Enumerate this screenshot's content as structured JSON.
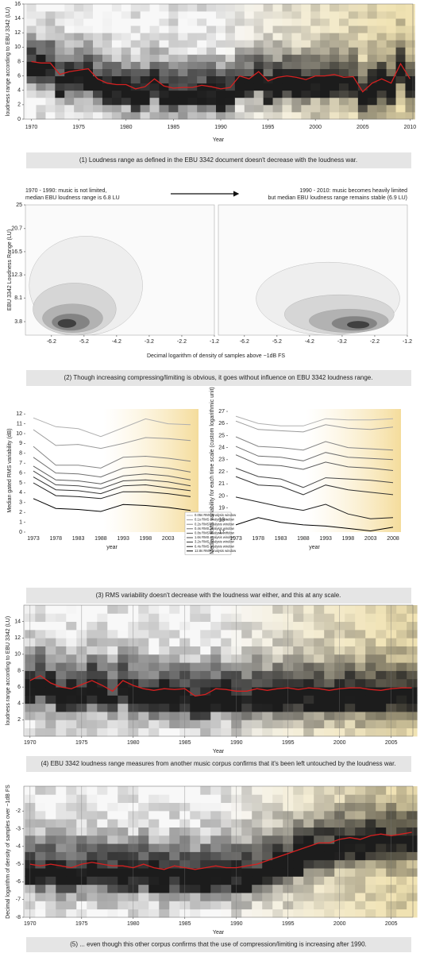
{
  "chart_data": [
    {
      "type": "heatmap",
      "ylabel": "loudness range according to EBU 3342 (LU)",
      "xlabel": "Year",
      "caption": "(1) Loudness range as defined in the EBU 3342 document doesn't decrease with the loudness war.",
      "x": [
        1970,
        1971,
        1972,
        1973,
        1974,
        1975,
        1976,
        1977,
        1978,
        1979,
        1980,
        1981,
        1982,
        1983,
        1984,
        1985,
        1986,
        1987,
        1988,
        1989,
        1990,
        1991,
        1992,
        1993,
        1994,
        1995,
        1996,
        1997,
        1998,
        1999,
        2000,
        2001,
        2002,
        2003,
        2004,
        2005,
        2006,
        2007,
        2008,
        2009,
        2010
      ],
      "values": [
        8,
        7.8,
        7.8,
        6.2,
        6.6,
        6.8,
        7,
        5.6,
        5,
        4.8,
        4.8,
        4.2,
        4.5,
        5.6,
        4.6,
        4.3,
        4.4,
        4.4,
        4.7,
        4.5,
        4.2,
        4.4,
        6,
        5.6,
        6.6,
        5.3,
        5.8,
        6,
        5.8,
        5.5,
        6,
        6,
        6.2,
        5.8,
        5.9,
        3.8,
        5,
        5.6,
        5,
        7.7,
        5.6
      ],
      "color": "#d62020",
      "xlim": [
        1969.2,
        2010.3
      ],
      "xticks": [
        1970,
        1975,
        1980,
        1985,
        1990,
        1995,
        2000,
        2005,
        2010
      ],
      "ylim": [
        0,
        16
      ],
      "yticks": [
        0,
        2,
        4,
        6,
        8,
        10,
        12,
        14,
        16
      ],
      "grid": false
    },
    {
      "type": "contour",
      "ylabel": "EBU 3342 Loudness Range (LU)",
      "xlabel": "Decimal logarithm of density of samples above −1dB FS",
      "annotation": [
        "1970 - 1990: music is not limited,",
        "median EBU loudness range is 6.8 LU"
      ],
      "xlim": [
        -7,
        -1.2
      ],
      "xticks": [
        -6.2,
        -5.2,
        -4.2,
        -3.2,
        -2.2,
        -1.2
      ],
      "ylim": [
        1.35,
        25
      ],
      "yticks": [
        3.8,
        8.1,
        12.3,
        16.5,
        20.7,
        25
      ]
    },
    {
      "type": "contour",
      "annotation": [
        "1990 - 2010: music becomes heavily limited",
        "but median EBU loudness range remains stable (6.9 LU)"
      ],
      "caption": "(2) Though increasing compressing/limiting is obvious, it goes without influence on EBU 3342 loudness range.",
      "xlim": [
        -7,
        -1.2
      ],
      "xticks": [
        -6.2,
        -5.2,
        -4.2,
        -3.2,
        -2.2,
        -1.2
      ]
    },
    {
      "type": "line",
      "ylabel": "Median gated RMS variability (dB)",
      "xlabel": "year",
      "categories": [
        "1973",
        "1978",
        "1983",
        "1988",
        "1993",
        "1998",
        "2003",
        "2008"
      ],
      "ylim": [
        0,
        12.5
      ],
      "yticks": [
        0,
        1,
        2,
        3,
        4,
        5,
        6,
        7,
        8,
        9,
        10,
        11,
        12
      ],
      "series": [
        {
          "name": "0.05s RMS analysis window",
          "color": "#b0b0b0",
          "values": [
            11.6,
            10.7,
            10.5,
            9.7,
            10.6,
            11.5,
            11.0,
            10.9
          ]
        },
        {
          "name": "0.1s RMS analysis window",
          "color": "#9a9a9a",
          "values": [
            10.4,
            8.8,
            8.9,
            8.5,
            9.0,
            9.6,
            9.5,
            9.3
          ]
        },
        {
          "name": "0.2s RMS analysis window",
          "color": "#858585",
          "values": [
            8.7,
            6.8,
            6.8,
            6.5,
            7.6,
            7.7,
            7.5,
            7.2
          ]
        },
        {
          "name": "0.4s RMS analysis window",
          "color": "#707070",
          "values": [
            7.6,
            6.0,
            5.9,
            5.6,
            6.5,
            6.7,
            6.5,
            6.1
          ]
        },
        {
          "name": "0.8s RMS analysis window",
          "color": "#5c5c5c",
          "values": [
            6.7,
            5.3,
            5.2,
            4.9,
            5.7,
            5.9,
            5.7,
            5.3
          ]
        },
        {
          "name": "1.6s RMS analysis window",
          "color": "#474747",
          "values": [
            6.2,
            4.8,
            4.7,
            4.4,
            5.2,
            5.3,
            5.1,
            4.7
          ]
        },
        {
          "name": "3.2s RMS analysis window",
          "color": "#333333",
          "values": [
            5.6,
            4.3,
            4.2,
            3.9,
            4.7,
            4.8,
            4.5,
            4.2
          ]
        },
        {
          "name": "6.4s RMS analysis window",
          "color": "#1f1f1f",
          "values": [
            5.0,
            3.7,
            3.6,
            3.4,
            4.1,
            4.1,
            3.9,
            3.6
          ]
        },
        {
          "name": "12.8s RMS analysis window",
          "color": "#000000",
          "values": [
            3.4,
            2.4,
            2.3,
            2.1,
            2.8,
            2.7,
            2.5,
            2.2
          ]
        }
      ]
    },
    {
      "type": "line",
      "ylabel": "Median RMS variability for each time scale (custom logarithmic unit)",
      "xlabel": "year",
      "caption": "(3) RMS variability doesn't decrease with the loudness war either, and this at any scale.",
      "categories": [
        "1973",
        "1978",
        "1983",
        "1988",
        "1993",
        "1998",
        "2003",
        "2008"
      ],
      "ylim": [
        17,
        27.2
      ],
      "yticks": [
        17,
        18,
        19,
        20,
        21,
        22,
        23,
        24,
        25,
        26,
        27
      ],
      "series": [
        {
          "color": "#b0b0b0",
          "values": [
            26.6,
            26.0,
            25.8,
            25.8,
            26.4,
            26.3,
            26.3,
            26.4
          ]
        },
        {
          "color": "#9a9a9a",
          "values": [
            26.2,
            25.5,
            25.4,
            25.3,
            25.9,
            25.6,
            25.5,
            25.7
          ]
        },
        {
          "color": "#858585",
          "values": [
            24.9,
            24.1,
            24.0,
            23.8,
            24.5,
            24.0,
            23.9,
            23.8
          ]
        },
        {
          "color": "#707070",
          "values": [
            24.1,
            23.3,
            23.2,
            22.9,
            23.6,
            23.2,
            23.1,
            23.0
          ]
        },
        {
          "color": "#5c5c5c",
          "values": [
            23.4,
            22.6,
            22.5,
            22.2,
            22.8,
            22.4,
            22.3,
            22.1
          ]
        },
        {
          "color": "#474747",
          "values": [
            22.3,
            21.6,
            21.4,
            20.7,
            21.5,
            21.4,
            21.3,
            21.1
          ]
        },
        {
          "color": "#333333",
          "values": [
            21.6,
            20.9,
            20.8,
            20.1,
            20.9,
            20.5,
            20.3,
            20.1
          ]
        },
        {
          "color": "#1f1f1f",
          "values": [
            19.9,
            19.5,
            19.1,
            18.8,
            19.3,
            18.5,
            18.1,
            18.2
          ]
        },
        {
          "color": "#000000",
          "values": [
            17.6,
            18.2,
            17.8,
            17.6,
            17.5,
            17.3,
            17.1,
            17.4
          ]
        }
      ]
    },
    {
      "type": "heatmap",
      "ylabel": "loudness range according to EBU 3342 (LU)",
      "xlabel": "Year",
      "caption": "(4) EBU 3342 loudness range measures from another music corpus confirms that it's been left untouched by the loudness war.",
      "x": [
        1970,
        1971,
        1972,
        1973,
        1974,
        1975,
        1976,
        1977,
        1978,
        1979,
        1980,
        1981,
        1982,
        1983,
        1984,
        1985,
        1986,
        1987,
        1988,
        1989,
        1990,
        1991,
        1992,
        1993,
        1994,
        1995,
        1996,
        1997,
        1998,
        1999,
        2000,
        2001,
        2002,
        2003,
        2004,
        2005,
        2006,
        2007
      ],
      "values": [
        6.8,
        7.4,
        6.5,
        6,
        5.8,
        6.3,
        6.8,
        6.2,
        5.5,
        6.8,
        6.2,
        5.8,
        5.6,
        5.8,
        5.7,
        5.8,
        4.9,
        5.1,
        5.8,
        5.7,
        5.5,
        5.5,
        5.8,
        5.6,
        5.8,
        5.9,
        5.7,
        5.9,
        5.8,
        5.6,
        5.8,
        5.9,
        5.9,
        5.7,
        5.6,
        5.8,
        5.9,
        5.9
      ],
      "color": "#d62020",
      "xlim": [
        1969.4,
        2007.1
      ],
      "xticks": [
        1970,
        1975,
        1980,
        1985,
        1990,
        1995,
        2000,
        2005
      ],
      "ylim": [
        0,
        16
      ],
      "yticks": [
        2,
        4,
        6,
        8,
        10,
        12,
        14
      ],
      "grid": true
    },
    {
      "type": "heatmap",
      "ylabel": "Decimal logarithm of density of samples over −1dB FS",
      "xlabel": "Year",
      "caption": "(5) ... even though this other corpus confirms that the use of compression/limiting is increasing after 1990.",
      "x": [
        1970,
        1971,
        1972,
        1973,
        1974,
        1975,
        1976,
        1977,
        1978,
        1979,
        1980,
        1981,
        1982,
        1983,
        1984,
        1985,
        1986,
        1987,
        1988,
        1989,
        1990,
        1991,
        1992,
        1993,
        1994,
        1995,
        1996,
        1997,
        1998,
        1999,
        2000,
        2001,
        2002,
        2003,
        2004,
        2005,
        2006,
        2007
      ],
      "values": [
        -5,
        -5.1,
        -5,
        -5.1,
        -5.2,
        -5,
        -4.9,
        -5,
        -5.1,
        -5.1,
        -5.2,
        -5,
        -5.2,
        -5.3,
        -5.1,
        -5.2,
        -5.3,
        -5.2,
        -5.1,
        -5.2,
        -5.2,
        -5.1,
        -5,
        -4.8,
        -4.6,
        -4.4,
        -4.2,
        -4,
        -3.8,
        -3.8,
        -3.6,
        -3.5,
        -3.6,
        -3.4,
        -3.3,
        -3.4,
        -3.3,
        -3.2
      ],
      "color": "#d62020",
      "xlim": [
        1969.4,
        2007.1
      ],
      "xticks": [
        1970,
        1975,
        1980,
        1985,
        1990,
        1995,
        2000,
        2005
      ],
      "ylim": [
        -8,
        -0.6
      ],
      "yticks": [
        -8,
        -7,
        -6,
        -5,
        -4,
        -3,
        -2
      ],
      "grid": true
    }
  ]
}
